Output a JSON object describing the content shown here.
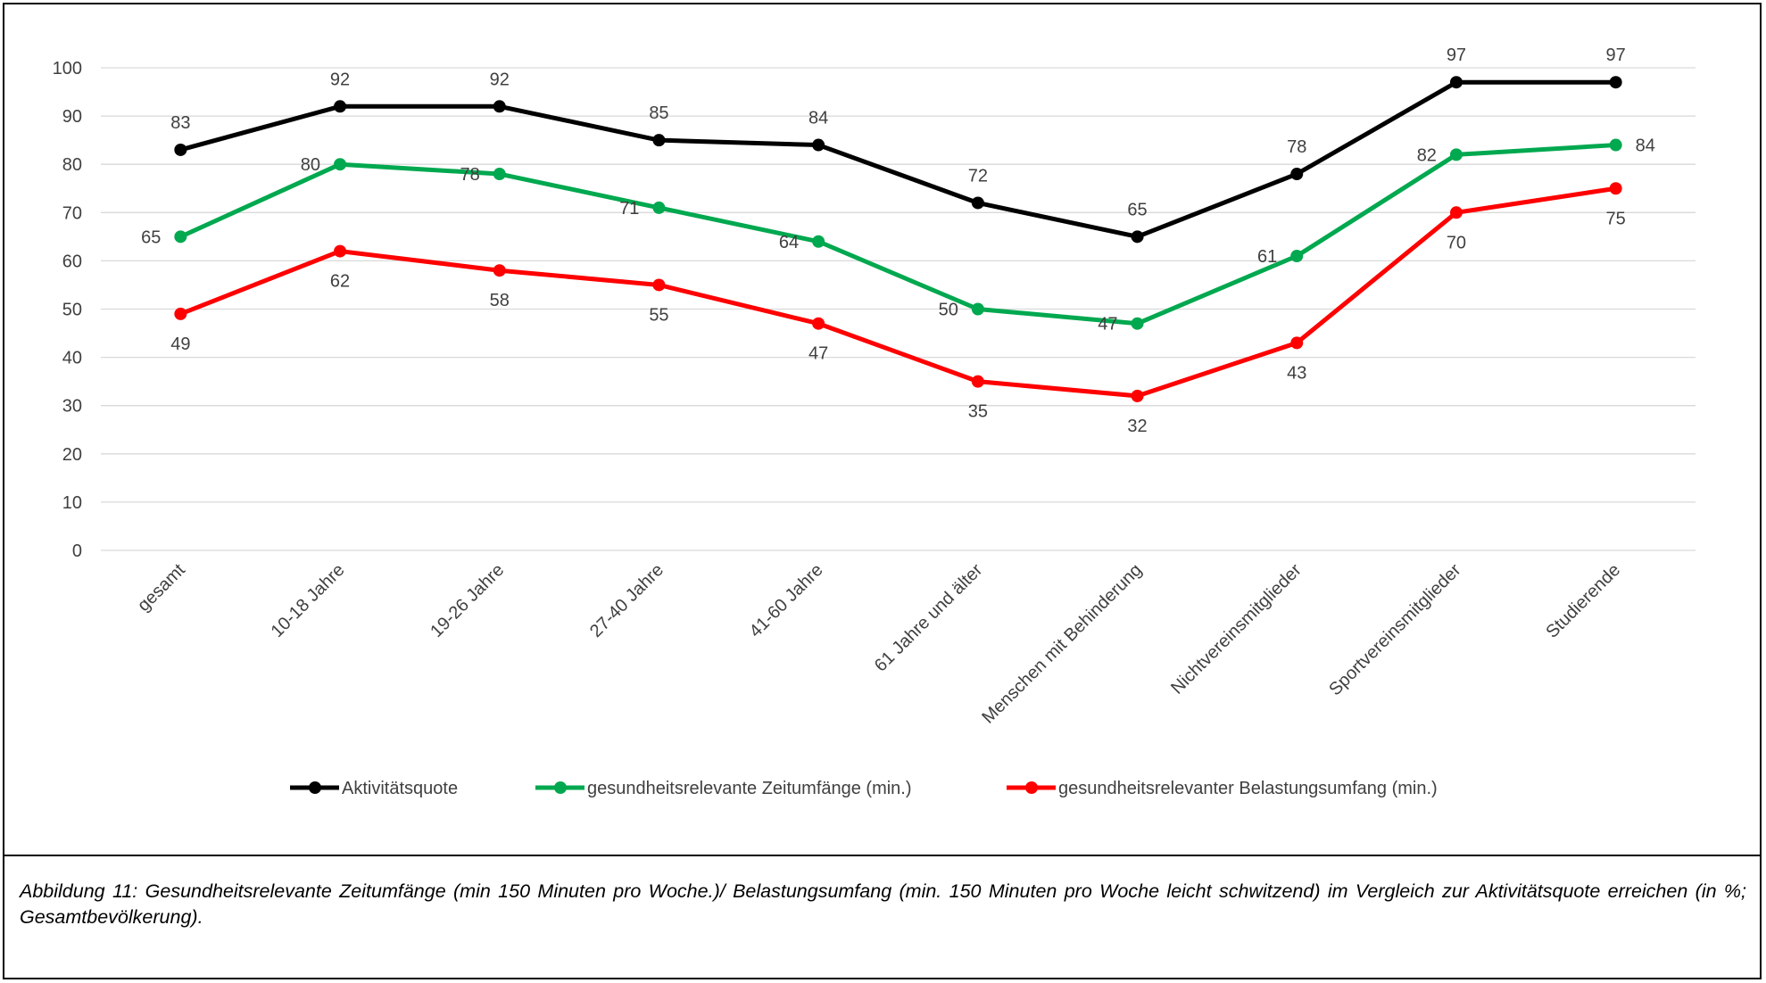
{
  "chart_data": {
    "type": "line",
    "categories": [
      "gesamt",
      "10-18 Jahre",
      "19-26 Jahre",
      "27-40 Jahre",
      "41-60 Jahre",
      "61 Jahre und älter",
      "Menschen mit Behinderung",
      "Nichtvereinsmitglieder",
      "Sportvereinsmitglieder",
      "Studierende"
    ],
    "series": [
      {
        "name": "Aktivitätsquote",
        "color": "#000000",
        "values": [
          83,
          92,
          92,
          85,
          84,
          72,
          65,
          78,
          97,
          97
        ]
      },
      {
        "name": "gesundheitsrelevante Zeitumfänge (min.)",
        "color": "#00a84f",
        "values": [
          65,
          80,
          78,
          71,
          64,
          50,
          47,
          61,
          82,
          84
        ]
      },
      {
        "name": "gesundheitsrelevanter Belastungsumfang (min.)",
        "color": "#ff0000",
        "values": [
          49,
          62,
          58,
          55,
          47,
          35,
          32,
          43,
          70,
          75
        ]
      }
    ],
    "y_ticks": [
      "0",
      "10",
      "20",
      "30",
      "40",
      "50",
      "60",
      "70",
      "80",
      "90",
      "100"
    ],
    "ylim": [
      0,
      100
    ],
    "grid": true,
    "legend": "bottom",
    "data_labels": true
  },
  "caption": "Abbildung 11: Gesundheitsrelevante Zeitumfänge (min 150 Minuten pro Woche.)/ Belastungsumfang (min. 150 Minuten pro Woche leicht schwitzend) im Vergleich zur Aktivitätsquote erreichen (in %; Gesamtbevölkerung)."
}
